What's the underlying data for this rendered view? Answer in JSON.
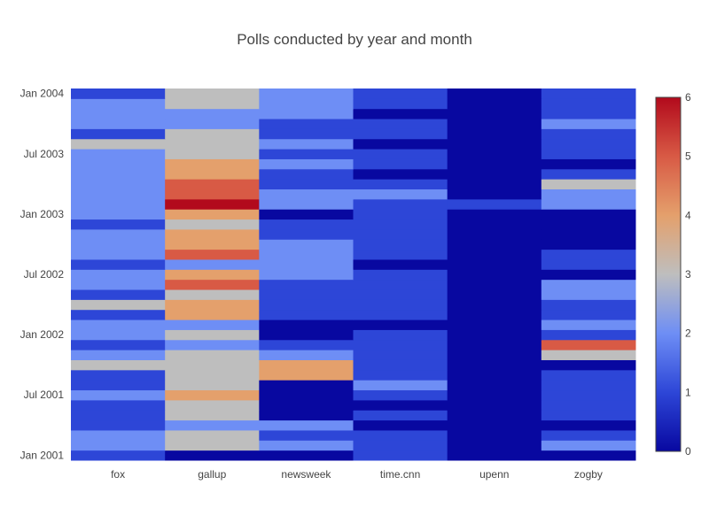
{
  "chart_data": {
    "type": "heatmap",
    "title": "Polls conducted by year and month",
    "xlabel": "",
    "ylabel": "",
    "x_categories": [
      "fox",
      "gallup",
      "newsweek",
      "time.cnn",
      "upenn",
      "zogby"
    ],
    "y_months": [
      "2001-01",
      "2001-02",
      "2001-03",
      "2001-04",
      "2001-05",
      "2001-06",
      "2001-07",
      "2001-08",
      "2001-09",
      "2001-10",
      "2001-11",
      "2001-12",
      "2002-01",
      "2002-02",
      "2002-03",
      "2002-04",
      "2002-05",
      "2002-06",
      "2002-07",
      "2002-08",
      "2002-09",
      "2002-10",
      "2002-11",
      "2002-12",
      "2003-01",
      "2003-02",
      "2003-03",
      "2003-04",
      "2003-05",
      "2003-06",
      "2003-07",
      "2003-08",
      "2003-09",
      "2003-10",
      "2003-11",
      "2003-12",
      "2004-01"
    ],
    "y_tick_labels": [
      {
        "month": "2001-01",
        "label": "Jan 2001"
      },
      {
        "month": "2001-07",
        "label": "Jul 2001"
      },
      {
        "month": "2002-01",
        "label": "Jan 2002"
      },
      {
        "month": "2002-07",
        "label": "Jul 2002"
      },
      {
        "month": "2003-01",
        "label": "Jan 2003"
      },
      {
        "month": "2003-07",
        "label": "Jul 2003"
      },
      {
        "month": "2004-01",
        "label": "Jan 2004"
      }
    ],
    "z": [
      [
        1,
        0,
        0,
        1,
        0,
        0
      ],
      [
        2,
        3,
        2,
        1,
        0,
        2
      ],
      [
        2,
        3,
        1,
        1,
        0,
        1
      ],
      [
        1,
        2,
        2,
        0,
        0,
        0
      ],
      [
        1,
        3,
        0,
        1,
        0,
        1
      ],
      [
        1,
        3,
        0,
        0,
        0,
        1
      ],
      [
        2,
        4,
        0,
        1,
        0,
        1
      ],
      [
        1,
        3,
        0,
        2,
        0,
        1
      ],
      [
        1,
        3,
        4,
        1,
        0,
        1
      ],
      [
        3,
        3,
        4,
        1,
        0,
        0
      ],
      [
        2,
        3,
        2,
        1,
        0,
        3
      ],
      [
        1,
        2,
        1,
        1,
        0,
        5
      ],
      [
        2,
        3,
        0,
        1,
        0,
        1
      ],
      [
        2,
        2,
        0,
        0,
        0,
        2
      ],
      [
        1,
        4,
        1,
        1,
        0,
        1
      ],
      [
        3,
        4,
        1,
        1,
        0,
        1
      ],
      [
        1,
        3,
        1,
        1,
        0,
        2
      ],
      [
        2,
        5,
        1,
        1,
        0,
        2
      ],
      [
        2,
        4,
        2,
        1,
        0,
        0
      ],
      [
        1,
        2,
        2,
        0,
        0,
        1
      ],
      [
        2,
        5,
        2,
        1,
        0,
        1
      ],
      [
        2,
        4,
        2,
        1,
        0,
        0
      ],
      [
        2,
        4,
        1,
        1,
        0,
        0
      ],
      [
        1,
        3,
        1,
        1,
        0,
        0
      ],
      [
        2,
        4,
        0,
        1,
        0,
        0
      ],
      [
        2,
        6,
        2,
        1,
        1,
        2
      ],
      [
        2,
        5,
        2,
        2,
        0,
        2
      ],
      [
        2,
        5,
        1,
        1,
        0,
        3
      ],
      [
        2,
        4,
        1,
        0,
        0,
        1
      ],
      [
        2,
        4,
        2,
        1,
        0,
        0
      ],
      [
        2,
        3,
        1,
        1,
        0,
        1
      ],
      [
        3,
        3,
        2,
        0,
        0,
        1
      ],
      [
        1,
        3,
        1,
        1,
        0,
        1
      ],
      [
        2,
        2,
        1,
        1,
        0,
        2
      ],
      [
        2,
        2,
        2,
        0,
        0,
        1
      ],
      [
        2,
        3,
        2,
        1,
        0,
        1
      ],
      [
        1,
        3,
        2,
        1,
        0,
        1
      ]
    ],
    "zmin": 0,
    "zmax": 6,
    "colorscale": [
      [
        0.0,
        "#0808a0"
      ],
      [
        0.1667,
        "#2d46d7"
      ],
      [
        0.3333,
        "#6e8ef5"
      ],
      [
        0.5,
        "#bebebe"
      ],
      [
        0.6667,
        "#e4a06c"
      ],
      [
        0.8333,
        "#d85a45"
      ],
      [
        1.0,
        "#b20a1c"
      ]
    ],
    "colorbar_ticks": [
      0,
      1,
      2,
      3,
      4,
      5,
      6
    ],
    "grid": false
  }
}
